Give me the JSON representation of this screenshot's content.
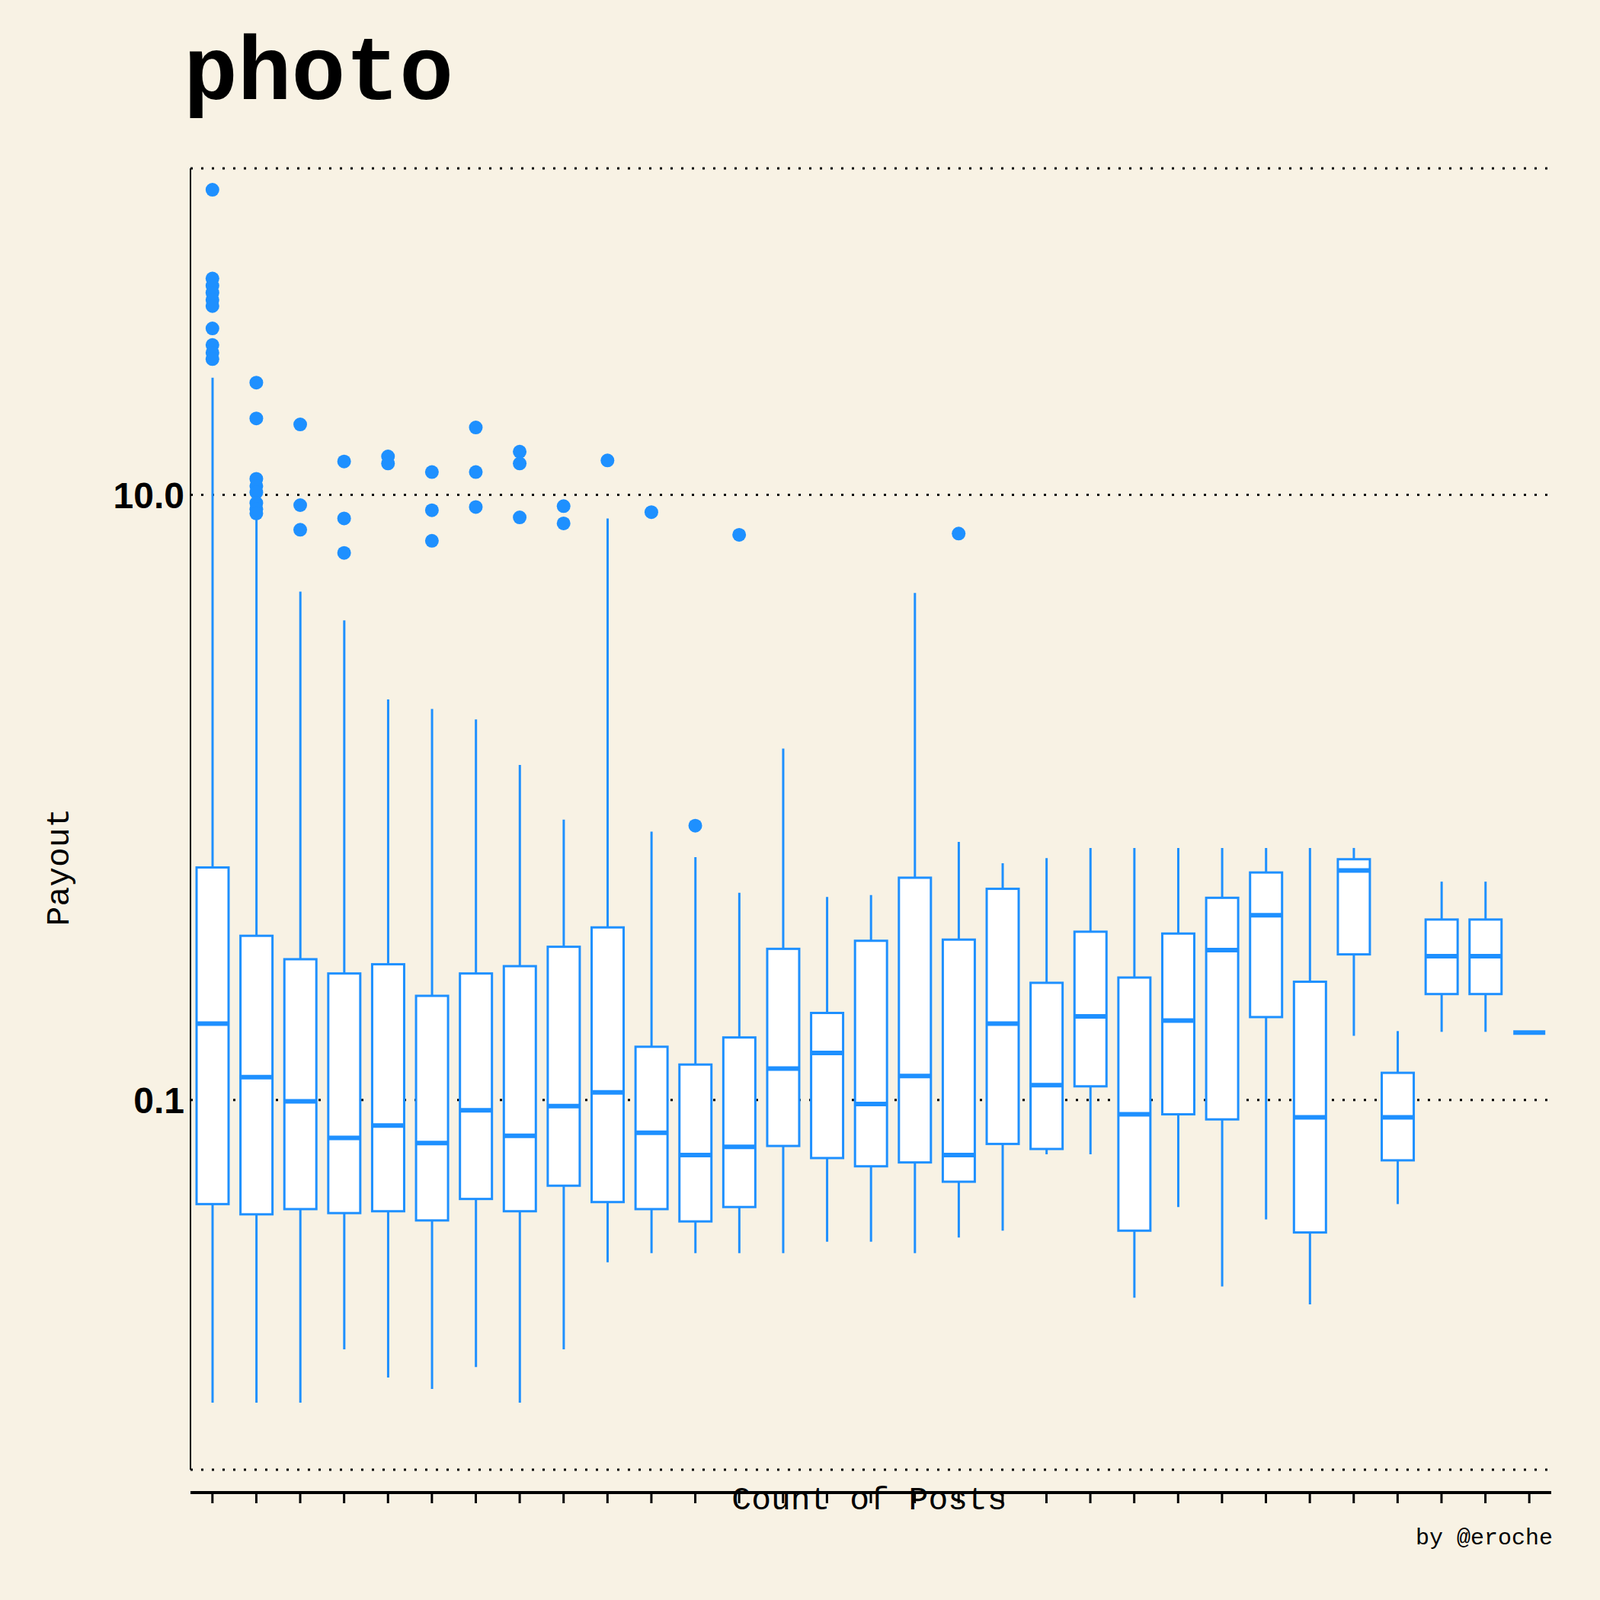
{
  "chart_data": {
    "type": "boxplot",
    "title": "photo",
    "x_label": "Count of Posts",
    "y_label": "Payout",
    "annotations": [
      "by @eroche"
    ],
    "categories": [
      null,
      null,
      null,
      null,
      null,
      null,
      null,
      null,
      null,
      null,
      null,
      null,
      null,
      null,
      null,
      null,
      null,
      null,
      null,
      null,
      null,
      null,
      null,
      null,
      null,
      null,
      null,
      null,
      null,
      null,
      null
    ],
    "min": [
      0.01,
      0.01,
      0.01,
      0.015,
      0.0121,
      0.0111,
      0.0131,
      0.01,
      0.015,
      0.0291,
      0.0312,
      0.0312,
      0.0312,
      0.0312,
      0.034,
      0.034,
      0.0312,
      0.0351,
      0.037,
      0.0662,
      0.0662,
      0.0222,
      0.0443,
      0.0242,
      0.0403,
      0.0211,
      0.163,
      0.0453,
      0.168,
      0.168,
      0.167
    ],
    "q1": [
      0.0453,
      0.0419,
      0.0436,
      0.0423,
      0.0429,
      0.04,
      0.0471,
      0.0429,
      0.0521,
      0.046,
      0.0436,
      0.0397,
      0.0443,
      0.0705,
      0.0643,
      0.0604,
      0.0622,
      0.0537,
      0.0716,
      0.0689,
      0.111,
      0.037,
      0.0897,
      0.0863,
      0.188,
      0.0365,
      0.303,
      0.0632,
      0.224,
      0.224,
      0.167
    ],
    "median": [
      0.179,
      0.119,
      0.099,
      0.075,
      0.0824,
      0.0721,
      0.0925,
      0.0762,
      0.0955,
      0.106,
      0.078,
      0.0658,
      0.07,
      0.127,
      0.143,
      0.097,
      0.12,
      0.0658,
      0.179,
      0.112,
      0.189,
      0.0897,
      0.183,
      0.313,
      0.408,
      0.0877,
      0.574,
      0.0877,
      0.299,
      0.299,
      0.167
    ],
    "q3": [
      0.587,
      0.349,
      0.292,
      0.262,
      0.281,
      0.221,
      0.262,
      0.277,
      0.321,
      0.372,
      0.15,
      0.131,
      0.161,
      0.316,
      0.194,
      0.336,
      0.543,
      0.339,
      0.499,
      0.244,
      0.36,
      0.254,
      0.355,
      0.466,
      0.565,
      0.246,
      0.625,
      0.123,
      0.395,
      0.395,
      0.167
    ],
    "max": [
      24.4,
      8.57,
      4.79,
      3.85,
      2.11,
      1.96,
      1.81,
      1.28,
      0.845,
      8.36,
      0.771,
      0.635,
      0.484,
      1.45,
      0.469,
      0.476,
      4.74,
      0.713,
      0.606,
      0.63,
      0.681,
      0.681,
      0.681,
      0.681,
      0.681,
      0.681,
      0.681,
      0.169,
      0.527,
      0.527,
      0.167
    ],
    "outliers": [
      [
        102,
        51.9,
        49.1,
        46.6,
        44.1,
        42.1,
        35.5,
        31.3,
        29.5,
        28.1
      ],
      [
        23.5,
        17.9,
        11.3,
        10.7,
        10.2,
        9.4,
        8.97,
        8.69
      ],
      [
        17.1,
        9.25,
        7.67
      ],
      [
        12.9,
        8.36,
        6.43
      ],
      [
        13.4,
        12.7
      ],
      [
        11.9,
        8.9,
        7.05
      ],
      [
        16.7,
        11.9,
        9.12
      ],
      [
        13.9,
        12.7,
        8.43
      ],
      [
        9.18,
        8.05
      ],
      [
        13
      ],
      [
        8.77
      ],
      [
        0.807
      ],
      [
        7.38
      ],
      [],
      [],
      [],
      [],
      [
        7.45
      ],
      [],
      [],
      [],
      [],
      [],
      [],
      [],
      [],
      [],
      [],
      [],
      [],
      []
    ],
    "color": "#1e90ff",
    "log": "y",
    "ylim": [
      0.006,
      120
    ],
    "yticks": [
      0.1,
      {
        "value": 10,
        "label": "10.0"
      }
    ],
    "grid": true,
    "tick_labels": "y"
  }
}
